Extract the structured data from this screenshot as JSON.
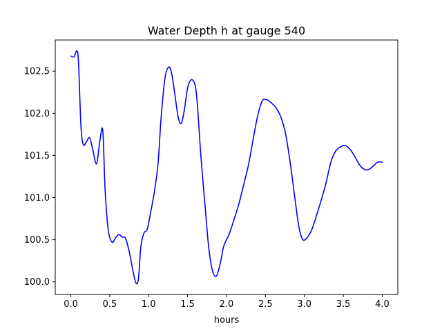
{
  "chart_data": {
    "type": "line",
    "title": "Water Depth h at gauge 540",
    "xlabel": "hours",
    "ylabel": "",
    "xlim": [
      -0.2,
      4.2
    ],
    "ylim": [
      99.85,
      102.87
    ],
    "xticks": [
      0.0,
      0.5,
      1.0,
      1.5,
      2.0,
      2.5,
      3.0,
      3.5,
      4.0
    ],
    "xtick_labels": [
      "0.0",
      "0.5",
      "1.0",
      "1.5",
      "2.0",
      "2.5",
      "3.0",
      "3.5",
      "4.0"
    ],
    "yticks": [
      100.0,
      100.5,
      101.0,
      101.5,
      102.0,
      102.5
    ],
    "ytick_labels": [
      "100.0",
      "100.5",
      "101.0",
      "101.5",
      "102.0",
      "102.5"
    ],
    "grid": false,
    "series": [
      {
        "color": "#0000ff",
        "x": [
          0.0,
          0.04,
          0.08,
          0.1,
          0.13,
          0.16,
          0.2,
          0.24,
          0.28,
          0.33,
          0.37,
          0.41,
          0.44,
          0.48,
          0.53,
          0.58,
          0.62,
          0.66,
          0.7,
          0.75,
          0.8,
          0.84,
          0.87,
          0.9,
          0.94,
          0.98,
          1.02,
          1.07,
          1.12,
          1.16,
          1.21,
          1.26,
          1.3,
          1.34,
          1.38,
          1.42,
          1.46,
          1.5,
          1.55,
          1.6,
          1.63,
          1.67,
          1.72,
          1.77,
          1.82,
          1.87,
          1.92,
          1.96,
          2.0,
          2.04,
          2.1,
          2.16,
          2.22,
          2.28,
          2.34,
          2.4,
          2.46,
          2.52,
          2.58,
          2.64,
          2.7,
          2.76,
          2.82,
          2.88,
          2.93,
          2.98,
          3.04,
          3.1,
          3.16,
          3.22,
          3.28,
          3.34,
          3.4,
          3.46,
          3.52,
          3.58,
          3.64,
          3.7,
          3.76,
          3.82,
          3.88,
          3.94,
          4.0
        ],
        "y": [
          102.68,
          102.67,
          102.74,
          102.58,
          101.85,
          101.63,
          101.66,
          101.71,
          101.58,
          101.4,
          101.65,
          101.8,
          101.1,
          100.62,
          100.47,
          100.53,
          100.56,
          100.53,
          100.52,
          100.36,
          100.12,
          99.98,
          100.05,
          100.42,
          100.58,
          100.62,
          100.8,
          101.05,
          101.4,
          101.95,
          102.42,
          102.55,
          102.45,
          102.2,
          101.95,
          101.88,
          102.05,
          102.3,
          102.4,
          102.32,
          102.05,
          101.5,
          100.95,
          100.42,
          100.13,
          100.07,
          100.22,
          100.41,
          100.5,
          100.58,
          100.75,
          100.93,
          101.15,
          101.38,
          101.68,
          101.97,
          102.15,
          102.16,
          102.12,
          102.06,
          101.95,
          101.75,
          101.4,
          100.98,
          100.65,
          100.5,
          100.53,
          100.63,
          100.8,
          100.98,
          101.18,
          101.42,
          101.55,
          101.6,
          101.62,
          101.58,
          101.5,
          101.4,
          101.34,
          101.33,
          101.37,
          101.42,
          101.42
        ]
      }
    ]
  }
}
